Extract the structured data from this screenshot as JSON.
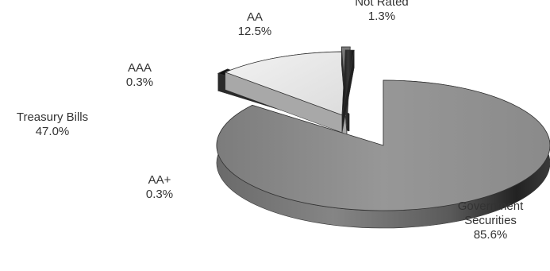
{
  "chart_data": {
    "type": "pie",
    "style": "3d-exploded",
    "legend": "none",
    "labels_on_chart": true,
    "slices": [
      {
        "name": "Government Securities",
        "name_lines": [
          "Government",
          "Securities"
        ],
        "value_label": "85.6%",
        "value": 85.6,
        "color": "#8c8c8c"
      },
      {
        "name": "Not Rated",
        "name_lines": [
          "Not Rated"
        ],
        "value_label": "1.3%",
        "value": 1.3,
        "color": "#1c1c1c"
      },
      {
        "name": "AA",
        "name_lines": [
          "AA"
        ],
        "value_label": "12.5%",
        "value": 12.5,
        "color": "#ececec"
      },
      {
        "name": "AA+",
        "name_lines": [
          "AA+"
        ],
        "value_label": "0.3%",
        "value": 0.3,
        "color": "#7a7a7a"
      },
      {
        "name": "AAA",
        "name_lines": [
          "AAA"
        ],
        "value_label": "0.3%",
        "value": 0.3,
        "color": "#161616"
      }
    ],
    "extra_labels": [
      {
        "name": "Treasury Bills",
        "value_label": "47.0%"
      }
    ]
  }
}
